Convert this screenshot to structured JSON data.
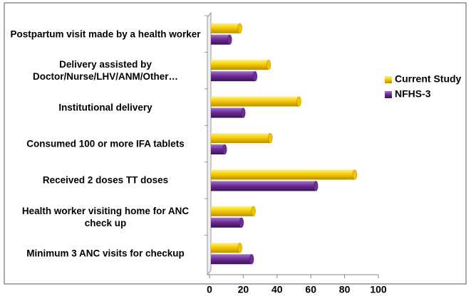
{
  "chart_data": {
    "type": "bar",
    "orientation": "horizontal",
    "categories": [
      "Postpartum visit made by a health worker",
      "Delivery assisted by Doctor/Nurse/LHV/ANM/Other…",
      "Institutional delivery",
      "Consumed 100 or more IFA tablets",
      "Received 2 doses TT doses",
      "Health worker visiting home for ANC check up",
      "Minimum 3 ANC visits for checkup"
    ],
    "series": [
      {
        "name": "Current Study",
        "color": "#f2c200",
        "values": [
          18,
          35,
          53,
          36,
          86,
          26,
          18
        ]
      },
      {
        "name": "NFHS-3",
        "color": "#6b2f93",
        "values": [
          12,
          27,
          20,
          9,
          63,
          19,
          25
        ]
      }
    ],
    "xlim": [
      0,
      100
    ],
    "xticks": [
      0,
      20,
      40,
      60,
      80,
      100
    ],
    "legend": "right"
  }
}
